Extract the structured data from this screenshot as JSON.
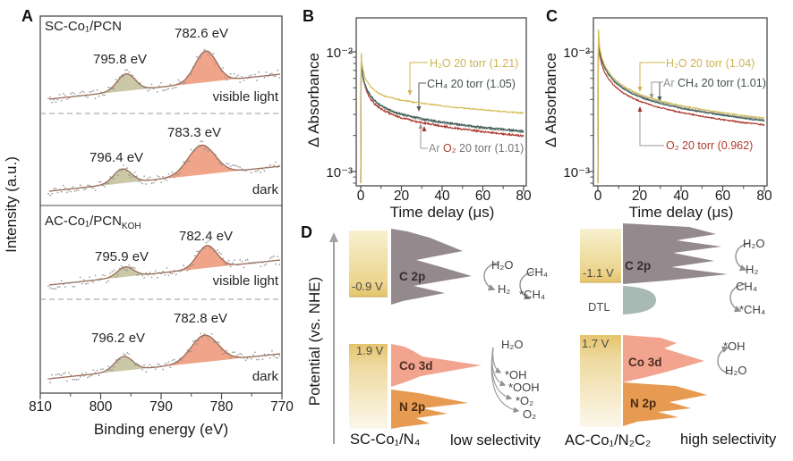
{
  "colors": {
    "frame": "#4b4b4b",
    "xps_line": "#9a6a53",
    "scatter": "#8e8e8e",
    "sage": "#cbc8a8",
    "salmon": "#f0a58a",
    "yellow": "#d5bd57",
    "teal": "#3f6054",
    "grey": "#9c9c9c",
    "red": "#ab3428",
    "c2p": "#94898d",
    "co3d": "#f2a48e",
    "n2p": "#e79b52",
    "dtl": "#a9bab5",
    "gold": "#e4c46c",
    "cream": "#faf5e6",
    "arrow": "#929292"
  },
  "panels": {
    "A": {
      "letter": "A",
      "xlabel": "Binding energy (eV)",
      "ylabel": "Intensity (a.u.)",
      "x_ticks": [
        810,
        800,
        790,
        780,
        770
      ],
      "subpanels": [
        {
          "title": "SC-Co₁/PCN",
          "title_sub": "",
          "peak_left_label": "795.8 eV",
          "peak_right_label": "782.6 eV",
          "condition": "visible light",
          "peak_left_eV": 795.8,
          "peak_right_eV": 782.6,
          "render": {
            "hl": 19,
            "sl": 10,
            "hr": 35,
            "sr": 12
          }
        },
        {
          "title": "",
          "title_sub": "",
          "peak_left_label": "796.4 eV",
          "peak_right_label": "783.3 eV",
          "condition": "dark",
          "peak_left_eV": 796.4,
          "peak_right_eV": 783.3,
          "render": {
            "hl": 16,
            "sl": 10,
            "hr": 33,
            "sr": 15
          }
        },
        {
          "title": "AC-Co₁/PCN",
          "title_sub": "KOH",
          "peak_left_label": "795.9 eV",
          "peak_right_label": "782.4 eV",
          "condition": "visible light",
          "peak_left_eV": 795.9,
          "peak_right_eV": 782.4,
          "render": {
            "hl": 11,
            "sl": 9,
            "hr": 25,
            "sr": 11
          }
        },
        {
          "title": "",
          "title_sub": "",
          "peak_left_label": "796.2 eV",
          "peak_right_label": "782.8 eV",
          "condition": "dark",
          "peak_left_eV": 796.2,
          "peak_right_eV": 782.8,
          "render": {
            "hl": 16,
            "sl": 10,
            "hr": 30,
            "sr": 15
          }
        }
      ]
    },
    "B": {
      "letter": "B",
      "ylabel": "Δ Absorbance",
      "xlabel": "Time delay (μs)",
      "ytick_top": "10⁻²",
      "ytick_bottom": "10⁻³",
      "x_ticks": [
        0,
        20,
        40,
        60,
        80
      ],
      "legend": [
        {
          "parts": [
            {
              "text": "H₂O 20 torr (1.21)",
              "color": "#cdb452"
            }
          ]
        },
        {
          "parts": [
            {
              "text": "CH₄ 20 torr (1.05)",
              "color": "#44504a"
            }
          ]
        },
        {
          "parts": [
            {
              "text": "Ar ",
              "color": "#909090"
            },
            {
              "text": "O₂",
              "color": "#b03a2c"
            },
            {
              "text": " 20 torr (1.01)",
              "color": "#737373"
            }
          ]
        }
      ]
    },
    "C": {
      "letter": "C",
      "ylabel": "Δ Absorbance",
      "xlabel": "Time delay (μs)",
      "ytick_top": "10⁻²",
      "ytick_bottom": "10⁻³",
      "x_ticks": [
        0,
        20,
        40,
        60,
        80
      ],
      "legend": [
        {
          "parts": [
            {
              "text": "H₂O 20 torr (1.04)",
              "color": "#cdb452"
            }
          ]
        },
        {
          "parts": [
            {
              "text": "Ar ",
              "color": "#909090"
            },
            {
              "text": "CH₄ 20 torr (1.01)",
              "color": "#44504a"
            }
          ]
        },
        {
          "parts": [
            {
              "text": "O₂ 20 torr (0.962)",
              "color": "#b03a2c"
            }
          ]
        }
      ]
    },
    "D": {
      "letter": "D",
      "axis_label": "Potential (vs. NHE)",
      "left": {
        "cb_level": "-0.9 V",
        "cb_band": "C 2p",
        "vb_level": "1.9 V",
        "vb_band1": "Co 3d",
        "vb_band2": "N 2p",
        "material": "SC-Co₁/N₄",
        "selectivity": "low selectivity",
        "r1_from": "H₂O",
        "r1_to": "H₂",
        "r2_from": "CH₄",
        "r2_to": "*CH₄",
        "ox_from": "H₂O",
        "ox_p1": "*OH",
        "ox_p2": "*OOH",
        "ox_p3": "*O₂",
        "ox_p4": "O₂"
      },
      "right": {
        "cb_level": "-1.1 V",
        "cb_band": "C 2p",
        "dtl": "DTL",
        "vb_level": "1.7 V",
        "vb_band1": "Co 3d",
        "vb_band2": "N 2p",
        "material": "AC-Co₁/N₂C₂",
        "selectivity": "high selectivity",
        "r1_from": "H₂O",
        "r1_to": "H₂",
        "r2_from": "CH₄",
        "r2_to": "*CH₄",
        "ox_p1": "*OH",
        "ox_from": "H₂O"
      }
    }
  },
  "chart_data": [
    {
      "type": "line",
      "panel": "A",
      "title": "Co 2p XPS spectra",
      "xlabel": "Binding energy (eV)",
      "ylabel": "Intensity (a.u.)",
      "xlim": [
        810,
        770
      ],
      "series": [
        {
          "name": "SC-Co₁/PCN — visible light",
          "peaks_eV": [
            795.8,
            782.6
          ]
        },
        {
          "name": "SC-Co₁/PCN — dark",
          "peaks_eV": [
            796.4,
            783.3
          ]
        },
        {
          "name": "AC-Co₁/PCN(KOH) — visible light",
          "peaks_eV": [
            795.9,
            782.4
          ]
        },
        {
          "name": "AC-Co₁/PCN(KOH) — dark",
          "peaks_eV": [
            796.2,
            782.8
          ]
        }
      ]
    },
    {
      "type": "line",
      "panel": "B",
      "xlabel": "Time delay (μs)",
      "ylabel": "Δ Absorbance",
      "xlim": [
        0,
        80
      ],
      "ylog": true,
      "ylim": [
        0.00076,
        0.0186
      ],
      "x": [
        0,
        0.2,
        0.5,
        1,
        2,
        3,
        5,
        8,
        12,
        16,
        20,
        26,
        32,
        40,
        50,
        60,
        70,
        80
      ],
      "series": [
        {
          "key": "h2o",
          "name": "H₂O 20 torr (1.21)",
          "color": "#d5bd57",
          "noise": 0.01,
          "values": [
            0.0008,
            0.01,
            0.0085,
            0.0072,
            0.0062,
            0.0057,
            0.0051,
            0.0046,
            0.00425,
            0.0041,
            0.00395,
            0.0038,
            0.00368,
            0.00354,
            0.0034,
            0.00328,
            0.00317,
            0.00308
          ]
        },
        {
          "key": "ch4",
          "name": "CH₄ 20 torr (1.05)",
          "color": "#3f6054",
          "noise": 0.016,
          "values": [
            0.0008,
            0.0098,
            0.008,
            0.0065,
            0.0054,
            0.0049,
            0.00425,
            0.00375,
            0.0034,
            0.00318,
            0.00302,
            0.00285,
            0.00272,
            0.00258,
            0.00245,
            0.00234,
            0.00225,
            0.00218
          ]
        },
        {
          "key": "ar",
          "name": "Ar 20 torr",
          "color": "#9c9c9c",
          "noise": 0.014,
          "values": [
            0.0008,
            0.0097,
            0.0079,
            0.0064,
            0.00535,
            0.00485,
            0.0042,
            0.0037,
            0.00336,
            0.00314,
            0.00298,
            0.00282,
            0.00269,
            0.00255,
            0.00242,
            0.00231,
            0.00222,
            0.00215
          ]
        },
        {
          "key": "o2",
          "name": "O₂ 20 torr (1.01)",
          "color": "#ab3428",
          "noise": 0.016,
          "values": [
            0.0008,
            0.0097,
            0.0078,
            0.0063,
            0.0052,
            0.0046,
            0.004,
            0.00352,
            0.00318,
            0.00297,
            0.00282,
            0.00264,
            0.00252,
            0.00239,
            0.00226,
            0.00215,
            0.00206,
            0.00198
          ]
        }
      ]
    },
    {
      "type": "line",
      "panel": "C",
      "xlabel": "Time delay (μs)",
      "ylabel": "Δ Absorbance",
      "xlim": [
        0,
        80
      ],
      "ylog": true,
      "ylim": [
        0.00076,
        0.0186
      ],
      "x": [
        0,
        0.2,
        0.5,
        1,
        2,
        3,
        5,
        8,
        12,
        16,
        20,
        26,
        32,
        40,
        50,
        60,
        70,
        80
      ],
      "series": [
        {
          "key": "h2o",
          "name": "H₂O 20 torr (1.04)",
          "color": "#d5bd57",
          "noise": 0.008,
          "values": [
            0.0008,
            0.016,
            0.0128,
            0.0105,
            0.0088,
            0.0079,
            0.0068,
            0.0059,
            0.0052,
            0.00475,
            0.00442,
            0.00408,
            0.00382,
            0.00355,
            0.0033,
            0.0031,
            0.00293,
            0.0028
          ]
        },
        {
          "key": "ch4",
          "name": "CH₄ 20 torr (1.01)",
          "color": "#3f6054",
          "noise": 0.009,
          "values": [
            0.0008,
            0.0152,
            0.0122,
            0.01,
            0.00836,
            0.0075,
            0.00646,
            0.0056,
            0.00494,
            0.00451,
            0.0042,
            0.00388,
            0.00363,
            0.00337,
            0.00314,
            0.00295,
            0.00278,
            0.00266
          ]
        },
        {
          "key": "ar",
          "name": "Ar 20 torr (1.01)",
          "color": "#9c9c9c",
          "noise": 0.009,
          "values": [
            0.0008,
            0.0155,
            0.0124,
            0.0102,
            0.00854,
            0.00766,
            0.0066,
            0.00572,
            0.00504,
            0.00461,
            0.00429,
            0.00396,
            0.00371,
            0.00344,
            0.0032,
            0.00301,
            0.00284,
            0.00272
          ]
        },
        {
          "key": "o2",
          "name": "O₂ 20 torr (0.962)",
          "color": "#ab3428",
          "noise": 0.01,
          "values": [
            0.0008,
            0.014,
            0.0112,
            0.0092,
            0.0077,
            0.0069,
            0.00595,
            0.00516,
            0.00455,
            0.00416,
            0.00387,
            0.00357,
            0.00334,
            0.00311,
            0.00289,
            0.00271,
            0.00256,
            0.00245
          ]
        }
      ]
    },
    {
      "type": "diagram",
      "panel": "D",
      "ylabel": "Potential (vs. NHE)",
      "levels": [
        {
          "material": "SC-Co₁/N₄",
          "cb_edge_V": -0.9,
          "vb_edge_V": 1.9,
          "bands": [
            "C 2p",
            "Co 3d",
            "N 2p"
          ],
          "selectivity": "low selectivity",
          "reduction": [
            "H₂O→H₂",
            "CH₄→*CH₄"
          ],
          "oxidation": [
            "H₂O→*OH",
            "H₂O→*OOH",
            "H₂O→*O₂",
            "H₂O→O₂"
          ]
        },
        {
          "material": "AC-Co₁/N₂C₂",
          "cb_edge_V": -1.1,
          "vb_edge_V": 1.7,
          "bands": [
            "C 2p",
            "DTL",
            "Co 3d",
            "N 2p"
          ],
          "selectivity": "high selectivity",
          "reduction": [
            "H₂O→H₂",
            "CH₄→*CH₄"
          ],
          "oxidation": [
            "H₂O→*OH"
          ]
        }
      ]
    }
  ]
}
